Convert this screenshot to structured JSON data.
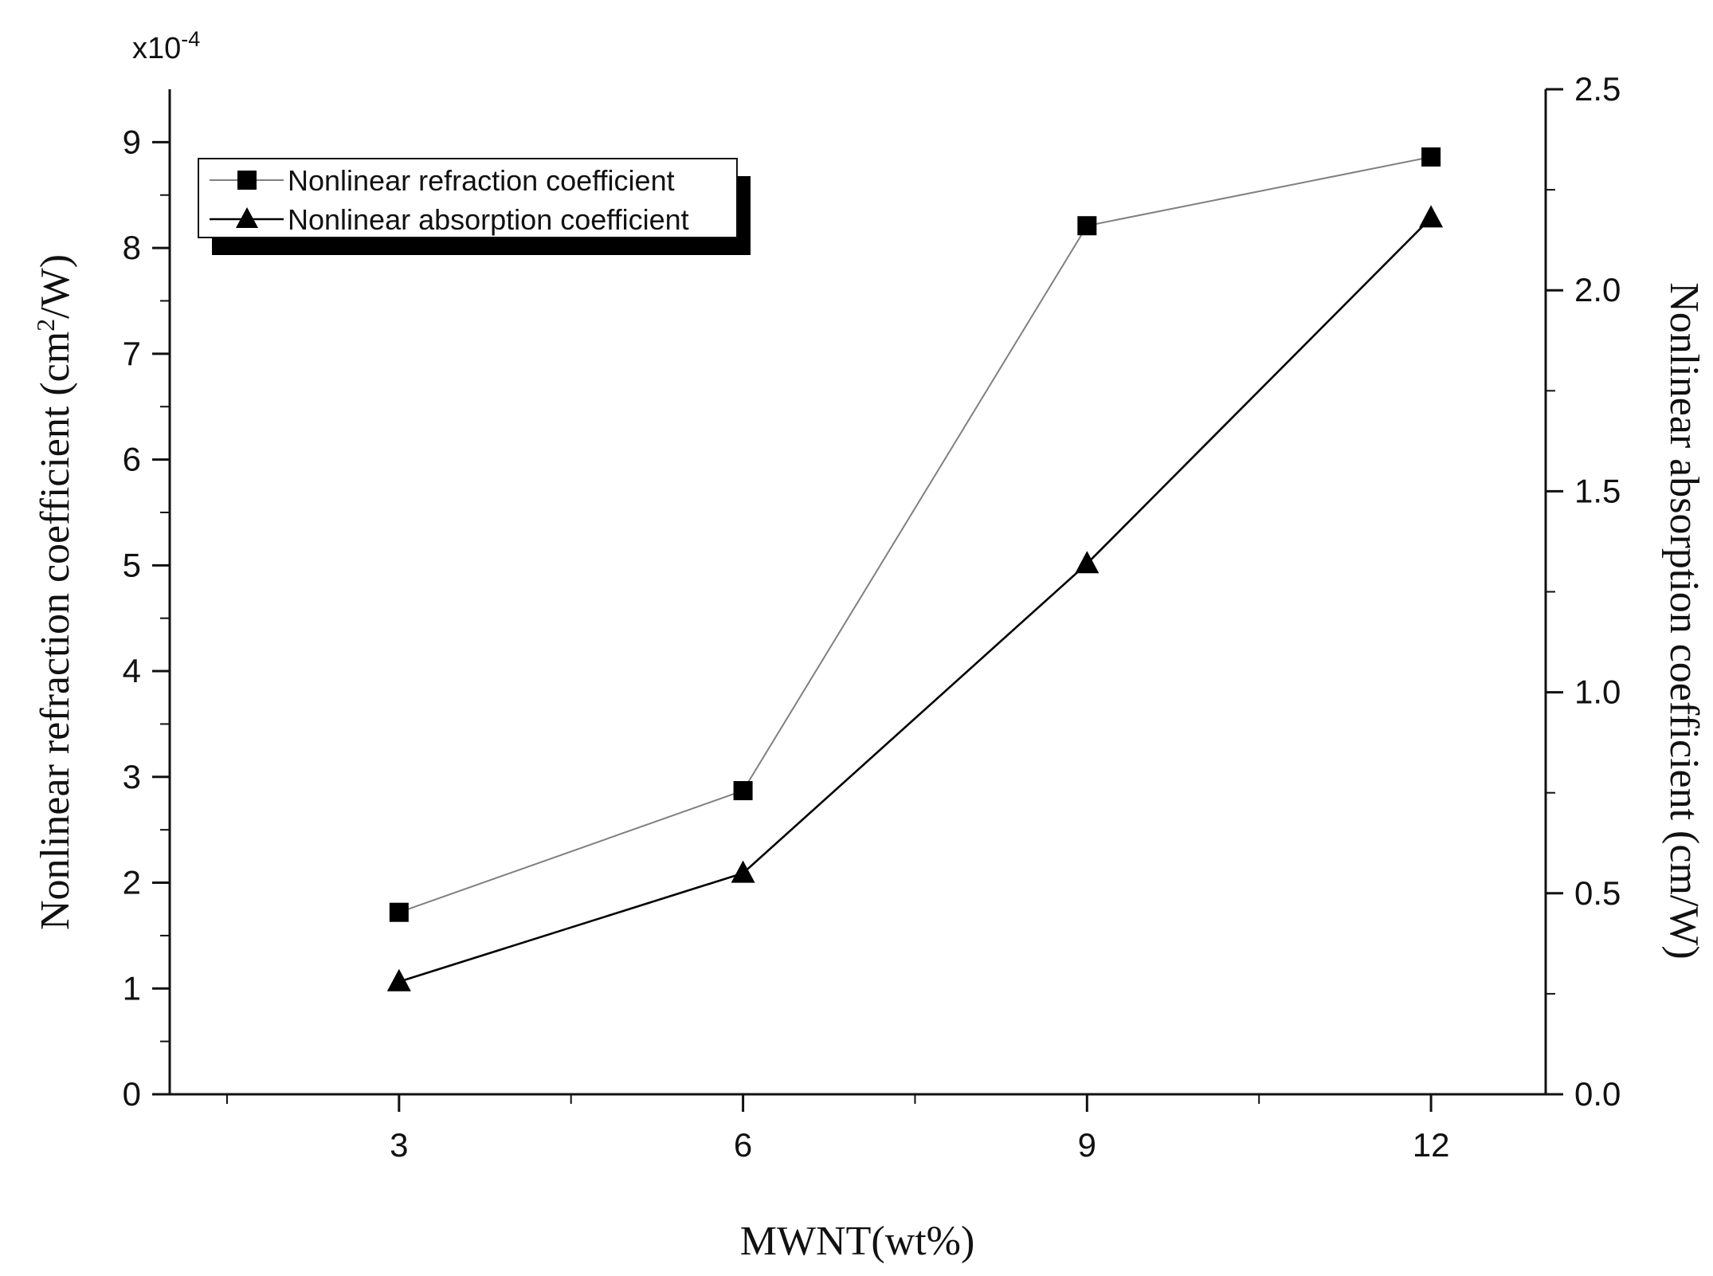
{
  "chart_data": {
    "type": "line",
    "x": [
      3,
      6,
      9,
      12
    ],
    "xlabel": "MWNT(wt%)",
    "xlim": [
      1,
      13
    ],
    "xticks": [
      "3",
      "6",
      "9",
      "12"
    ],
    "left_axis": {
      "label_prefix": "Nonlinear refraction coefficient (cm",
      "label_sup": "2",
      "label_suffix": "/W)",
      "multiplier_base": "x10",
      "multiplier_exp": "-4",
      "ylim": [
        0,
        9.5
      ],
      "ticks": [
        "0",
        "1",
        "2",
        "3",
        "4",
        "5",
        "6",
        "7",
        "8",
        "9"
      ]
    },
    "right_axis": {
      "label": "Nonlinear absorption coefficient (cm/W)",
      "ylim": [
        0,
        2.5
      ],
      "ticks": [
        "0.0",
        "0.5",
        "1.0",
        "1.5",
        "2.0",
        "2.5"
      ]
    },
    "series": [
      {
        "name": "Nonlinear refraction coefficient",
        "axis": "left",
        "marker": "square",
        "line_color": "#808080",
        "marker_color": "#000000",
        "values": [
          1.72,
          2.87,
          8.21,
          8.86
        ]
      },
      {
        "name": "Nonlinear absorption coefficient",
        "axis": "right",
        "marker": "triangle",
        "line_color": "#000000",
        "marker_color": "#000000",
        "values": [
          0.28,
          0.55,
          1.32,
          2.18
        ]
      }
    ],
    "legend": {
      "placement": "top-left",
      "shadow": true
    },
    "grid": false
  }
}
